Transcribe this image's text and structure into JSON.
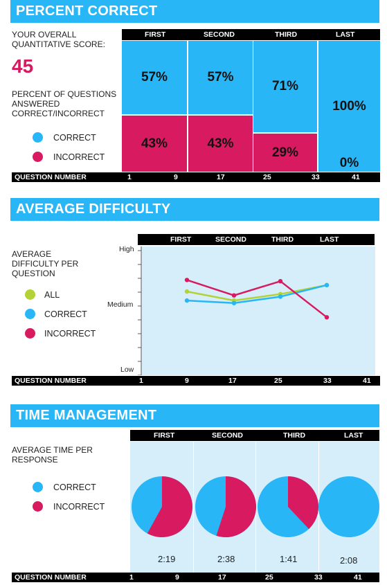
{
  "colors": {
    "header": "#29b6f6",
    "correct": "#29b6f6",
    "incorrect": "#d81b60",
    "all": "#b2d235",
    "panel": "#d5eefa"
  },
  "quarters": [
    "FIRST",
    "SECOND",
    "THIRD",
    "LAST"
  ],
  "question_axis": {
    "label": "QUESTION  NUMBER",
    "ticks": [
      "1",
      "9",
      "17",
      "25",
      "33",
      "41"
    ]
  },
  "legend": {
    "correct": "CORRECT",
    "incorrect": "INCORRECT",
    "all": "ALL"
  },
  "percent_section": {
    "title": "PERCENT CORRECT",
    "score_label_1": "YOUR OVERALL",
    "score_label_2": "QUANTITATIVE SCORE:",
    "score": "45",
    "desc_1": "PERCENT OF QUESTIONS",
    "desc_2": "ANSWERED",
    "desc_3": "CORRECT/INCORRECT"
  },
  "difficulty_section": {
    "title": "AVERAGE DIFFICULTY",
    "desc_1": "AVERAGE",
    "desc_2": "DIFFICULTY PER",
    "desc_3": "QUESTION",
    "y_high": "High",
    "y_medium": "Medium",
    "y_low": "Low"
  },
  "time_section": {
    "title": "TIME MANAGEMENT",
    "desc_1": "AVERAGE TIME PER",
    "desc_2": "RESPONSE",
    "times": [
      "2:19",
      "2:38",
      "1:41",
      "2:08"
    ]
  },
  "chart_data": [
    {
      "type": "bar",
      "stacked": true,
      "categories": [
        "FIRST",
        "SECOND",
        "THIRD",
        "LAST"
      ],
      "series": [
        {
          "name": "CORRECT",
          "values": [
            57,
            57,
            71,
            100
          ]
        },
        {
          "name": "INCORRECT",
          "values": [
            43,
            43,
            29,
            0
          ]
        }
      ],
      "ylim": [
        0,
        100
      ]
    },
    {
      "type": "line",
      "categories": [
        "FIRST",
        "SECOND",
        "THIRD",
        "LAST"
      ],
      "series": [
        {
          "name": "ALL",
          "values": [
            0.65,
            0.58,
            0.63,
            0.7
          ]
        },
        {
          "name": "CORRECT",
          "values": [
            0.58,
            0.56,
            0.61,
            0.7
          ]
        },
        {
          "name": "INCORRECT",
          "values": [
            0.74,
            0.62,
            0.73,
            0.45
          ]
        }
      ],
      "ylim": [
        0,
        1
      ]
    },
    {
      "type": "pie",
      "categories": [
        "FIRST",
        "SECOND",
        "THIRD",
        "LAST"
      ],
      "series": [
        {
          "name": "CORRECT",
          "values": [
            0.42,
            0.45,
            0.62,
            1.0
          ]
        },
        {
          "name": "INCORRECT",
          "values": [
            0.58,
            0.55,
            0.38,
            0.0
          ]
        }
      ]
    }
  ]
}
